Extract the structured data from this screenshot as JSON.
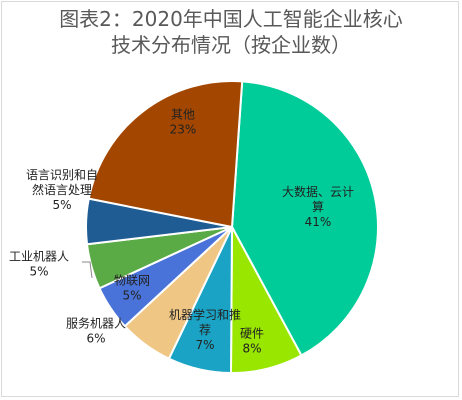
{
  "chart_data": {
    "type": "pie",
    "title_lines": [
      "图表2：2020年中国人工智能企业核心",
      "技术分布情况（按企业数）"
    ],
    "legend": "none",
    "slices": [
      {
        "name_lines": [
          "大数据、云计",
          "算"
        ],
        "value": 41,
        "label": "41%",
        "color": "#00cc99"
      },
      {
        "name_lines": [
          "硬件"
        ],
        "value": 8,
        "label": "8%",
        "color": "#99e600"
      },
      {
        "name_lines": [
          "机器学习和推",
          "荐"
        ],
        "value": 7,
        "label": "7%",
        "color": "#1aa3c4"
      },
      {
        "name_lines": [
          "服务机器人"
        ],
        "value": 6,
        "label": "6%",
        "color": "#f0c684"
      },
      {
        "name_lines": [
          "物联网"
        ],
        "value": 5,
        "label": "5%",
        "color": "#4a73d9"
      },
      {
        "name_lines": [
          "工业机器人"
        ],
        "value": 5,
        "label": "5%",
        "color": "#5aab46"
      },
      {
        "name_lines": [
          "语言识别和自",
          "然语言处理"
        ],
        "value": 5,
        "label": "5%",
        "color": "#1f5c94"
      },
      {
        "name_lines": [
          "其他"
        ],
        "value": 23,
        "label": "23%",
        "color": "#a34700"
      }
    ]
  }
}
